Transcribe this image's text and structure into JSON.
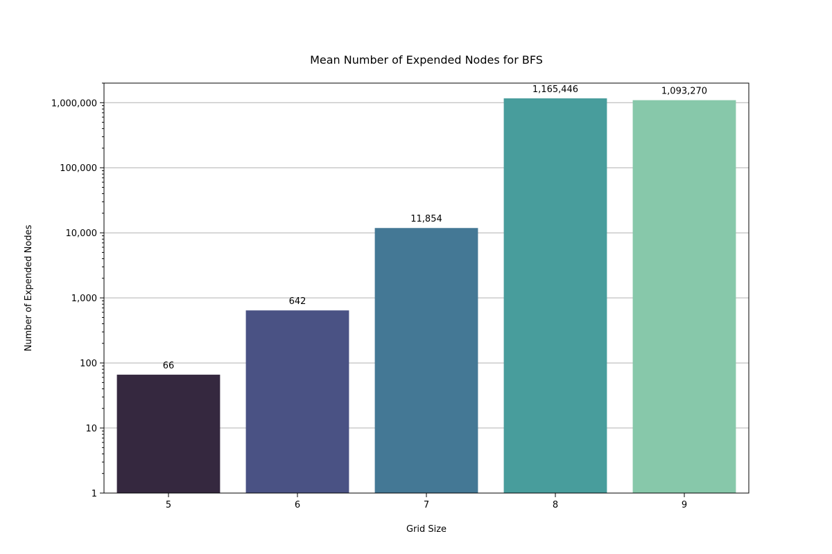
{
  "chart_data": {
    "type": "bar",
    "title": "Mean Number of Expended Nodes for BFS",
    "xlabel": "Grid Size",
    "ylabel": "Number of Expended Nodes",
    "yscale": "log",
    "ylim": [
      1,
      2000000
    ],
    "grid": "y-major",
    "categories": [
      "5",
      "6",
      "7",
      "8",
      "9"
    ],
    "values": [
      66,
      642,
      11854,
      1165446,
      1093270
    ],
    "value_labels": [
      "66",
      "642",
      "11,854",
      "1,165,446",
      "1,093,270"
    ],
    "bar_colors": [
      "#35283f",
      "#4a5284",
      "#447895",
      "#489d9c",
      "#87c8aa"
    ],
    "y_ticks": [
      {
        "value": 1,
        "label": "1"
      },
      {
        "value": 10,
        "label": "10"
      },
      {
        "value": 100,
        "label": "100"
      },
      {
        "value": 1000,
        "label": "1,000"
      },
      {
        "value": 10000,
        "label": "10,000"
      },
      {
        "value": 100000,
        "label": "100,000"
      },
      {
        "value": 1000000,
        "label": "1,000,000"
      }
    ]
  }
}
